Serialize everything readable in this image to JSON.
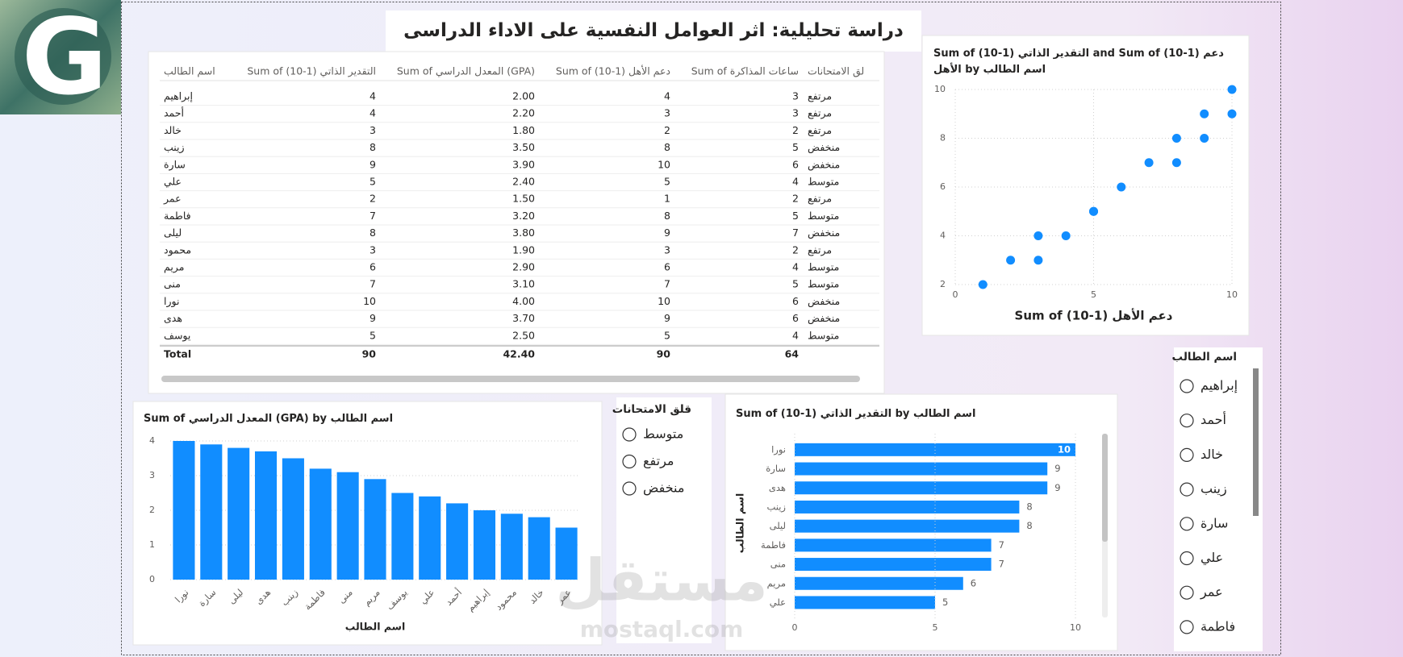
{
  "logo": "G",
  "title": "دراسة تحليلية: اثر العوامل النفسية على الاداء الدراسى",
  "table": {
    "header": [
      "اسم الطالب",
      "Sum of (10-1) التقدير الذاتي",
      "Sum of المعدل الدراسي (GPA)",
      "Sum of (10-1) دعم الأهل",
      "Sum of ساعات المذاكرة",
      "لق الامتحانات"
    ],
    "rows": [
      [
        "إبراهيم",
        "4",
        "2.00",
        "4",
        "3",
        "مرتفع"
      ],
      [
        "أحمد",
        "4",
        "2.20",
        "3",
        "3",
        "مرتفع"
      ],
      [
        "خالد",
        "3",
        "1.80",
        "2",
        "2",
        "مرتفع"
      ],
      [
        "زينب",
        "8",
        "3.50",
        "8",
        "5",
        "منخفض"
      ],
      [
        "سارة",
        "9",
        "3.90",
        "10",
        "6",
        "منخفض"
      ],
      [
        "علي",
        "5",
        "2.40",
        "5",
        "4",
        "متوسط"
      ],
      [
        "عمر",
        "2",
        "1.50",
        "1",
        "2",
        "مرتفع"
      ],
      [
        "فاطمة",
        "7",
        "3.20",
        "8",
        "5",
        "متوسط"
      ],
      [
        "ليلى",
        "8",
        "3.80",
        "9",
        "7",
        "منخفض"
      ],
      [
        "محمود",
        "3",
        "1.90",
        "3",
        "2",
        "مرتفع"
      ],
      [
        "مريم",
        "6",
        "2.90",
        "6",
        "4",
        "متوسط"
      ],
      [
        "منى",
        "7",
        "3.10",
        "7",
        "5",
        "متوسط"
      ],
      [
        "نورا",
        "10",
        "4.00",
        "10",
        "6",
        "منخفض"
      ],
      [
        "هدى",
        "9",
        "3.70",
        "9",
        "6",
        "منخفض"
      ],
      [
        "يوسف",
        "5",
        "2.50",
        "5",
        "4",
        "متوسط"
      ]
    ],
    "total": [
      "Total",
      "90",
      "42.40",
      "90",
      "64"
    ]
  },
  "slicers": [
    {
      "title": "قلق الامتحانات",
      "items": [
        "متوسط",
        "مرتفع",
        "منخفض"
      ]
    },
    {
      "title": "اسم الطالب",
      "items": [
        "إبراهيم",
        "أحمد",
        "خالد",
        "زينب",
        "سارة",
        "علي",
        "عمر",
        "فاطمة"
      ]
    }
  ],
  "watermark": [
    "مستقل",
    "mostaql.com"
  ],
  "chart_data": [
    {
      "type": "scatter",
      "title": "Sum of (10-1) التقدير الذاتي and Sum of (10-1) دعم الأهل by اسم الطالب",
      "x_label": "Sum of (10-1) دعم الأهل",
      "x": [
        4,
        3,
        2,
        8,
        10,
        5,
        1,
        8,
        9,
        3,
        6,
        7,
        10,
        9,
        5
      ],
      "values": [
        4,
        4,
        3,
        8,
        9,
        5,
        2,
        7,
        8,
        3,
        6,
        7,
        10,
        9,
        5
      ],
      "color": "#118DFF",
      "xlim": [
        0,
        10
      ],
      "xticks": [
        0,
        5,
        10
      ],
      "ylim": [
        2,
        10
      ],
      "yticks": [
        2,
        4,
        6,
        8,
        10
      ],
      "grid": true
    },
    {
      "type": "bar",
      "title": "Sum of المعدل الدراسي (GPA) by اسم الطالب",
      "x_label": "اسم الطالب",
      "categories": [
        "نورا",
        "سارة",
        "ليلى",
        "هدى",
        "زينب",
        "فاطمة",
        "منى",
        "مريم",
        "يوسف",
        "علي",
        "أحمد",
        "إبراهيم",
        "محمود",
        "خالد",
        "عمر"
      ],
      "values": [
        4.0,
        3.9,
        3.8,
        3.7,
        3.5,
        3.2,
        3.1,
        2.9,
        2.5,
        2.4,
        2.2,
        2.0,
        1.9,
        1.8,
        1.5
      ],
      "color": "#118DFF",
      "ylim": [
        0,
        4
      ],
      "yticks": [
        0,
        1,
        2,
        3,
        4
      ],
      "grid": true
    },
    {
      "type": "bar",
      "horizontal": true,
      "title": "Sum of (10-1) التقدير الذاتي by اسم الطالب",
      "y_label": "اسم الطالب",
      "categories": [
        "نورا",
        "سارة",
        "هدى",
        "زينب",
        "ليلى",
        "فاطمة",
        "منى",
        "مريم",
        "علي"
      ],
      "values": [
        10,
        9,
        9,
        8,
        8,
        7,
        7,
        6,
        5
      ],
      "color": "#118DFF",
      "xlim": [
        0,
        10
      ],
      "xticks": [
        0,
        5,
        10
      ],
      "grid": true
    }
  ]
}
